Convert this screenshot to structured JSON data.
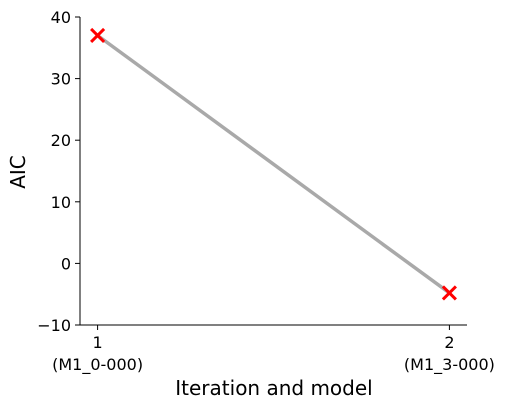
{
  "chart_data": {
    "type": "line",
    "xlabel": "Iteration and model",
    "ylabel": "AIC",
    "x": [
      1,
      2
    ],
    "x_tick_labels": [
      {
        "value": 1,
        "line1": "1",
        "line2": "(M1_0-000)"
      },
      {
        "value": 2,
        "line1": "2",
        "line2": "(M1_3-000)"
      }
    ],
    "series": [
      {
        "values": [
          37,
          -4.8
        ],
        "line_color": "#a9a9a9",
        "marker": "x",
        "marker_color": "#ff0000"
      }
    ],
    "xlim": [
      0.95,
      2.05
    ],
    "ylim": [
      -10,
      40
    ],
    "yticks": [
      -10,
      0,
      10,
      20,
      30,
      40
    ],
    "grid": false
  }
}
